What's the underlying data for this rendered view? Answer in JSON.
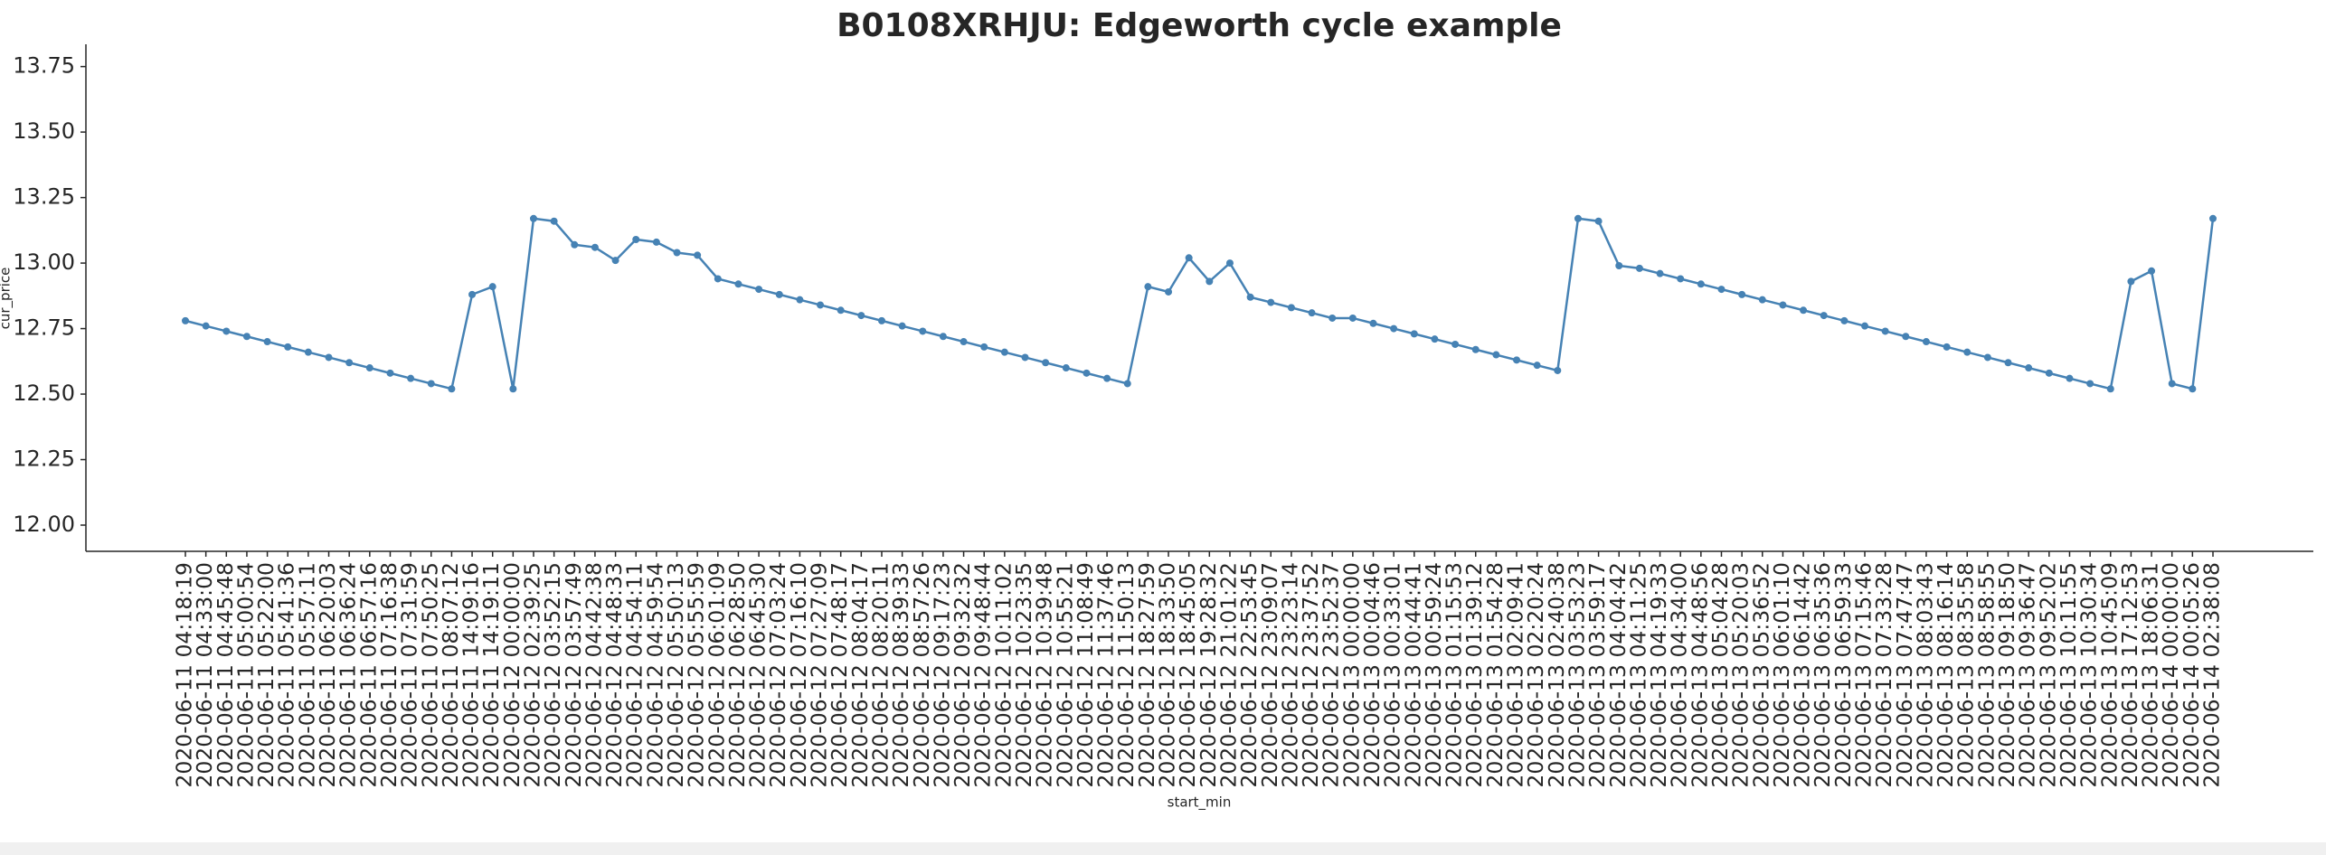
{
  "chart_data": {
    "type": "line",
    "title": "B0108XRHJU: Edgeworth cycle example",
    "x_label": "start_min",
    "y_label": "cur_price",
    "categories": [
      "2020-06-11 04:18:19",
      "2020-06-11 04:33:00",
      "2020-06-11 04:45:48",
      "2020-06-11 05:00:54",
      "2020-06-11 05:22:00",
      "2020-06-11 05:41:36",
      "2020-06-11 05:57:11",
      "2020-06-11 06:20:03",
      "2020-06-11 06:36:24",
      "2020-06-11 06:57:16",
      "2020-06-11 07:16:38",
      "2020-06-11 07:31:59",
      "2020-06-11 07:50:25",
      "2020-06-11 08:07:12",
      "2020-06-11 14:09:16",
      "2020-06-11 14:19:11",
      "2020-06-12 00:00:00",
      "2020-06-12 02:39:25",
      "2020-06-12 03:52:15",
      "2020-06-12 03:57:49",
      "2020-06-12 04:42:38",
      "2020-06-12 04:48:33",
      "2020-06-12 04:54:11",
      "2020-06-12 04:59:54",
      "2020-06-12 05:50:13",
      "2020-06-12 05:55:59",
      "2020-06-12 06:01:09",
      "2020-06-12 06:28:50",
      "2020-06-12 06:45:30",
      "2020-06-12 07:03:24",
      "2020-06-12 07:16:10",
      "2020-06-12 07:27:09",
      "2020-06-12 07:48:17",
      "2020-06-12 08:04:17",
      "2020-06-12 08:20:11",
      "2020-06-12 08:39:33",
      "2020-06-12 08:57:26",
      "2020-06-12 09:17:23",
      "2020-06-12 09:32:32",
      "2020-06-12 09:48:44",
      "2020-06-12 10:11:02",
      "2020-06-12 10:23:35",
      "2020-06-12 10:39:48",
      "2020-06-12 10:55:21",
      "2020-06-12 11:08:49",
      "2020-06-12 11:37:46",
      "2020-06-12 11:50:13",
      "2020-06-12 18:27:59",
      "2020-06-12 18:33:50",
      "2020-06-12 18:45:05",
      "2020-06-12 19:28:32",
      "2020-06-12 21:01:22",
      "2020-06-12 22:53:45",
      "2020-06-12 23:09:07",
      "2020-06-12 23:23:14",
      "2020-06-12 23:37:52",
      "2020-06-12 23:52:37",
      "2020-06-13 00:00:00",
      "2020-06-13 00:04:46",
      "2020-06-13 00:33:01",
      "2020-06-13 00:44:41",
      "2020-06-13 00:59:24",
      "2020-06-13 01:15:53",
      "2020-06-13 01:39:12",
      "2020-06-13 01:54:28",
      "2020-06-13 02:09:41",
      "2020-06-13 02:20:24",
      "2020-06-13 02:40:38",
      "2020-06-13 03:53:23",
      "2020-06-13 03:59:17",
      "2020-06-13 04:04:42",
      "2020-06-13 04:11:25",
      "2020-06-13 04:19:33",
      "2020-06-13 04:34:00",
      "2020-06-13 04:48:56",
      "2020-06-13 05:04:28",
      "2020-06-13 05:20:03",
      "2020-06-13 05:36:52",
      "2020-06-13 06:01:10",
      "2020-06-13 06:14:42",
      "2020-06-13 06:35:36",
      "2020-06-13 06:59:33",
      "2020-06-13 07:15:46",
      "2020-06-13 07:33:28",
      "2020-06-13 07:47:47",
      "2020-06-13 08:03:43",
      "2020-06-13 08:16:14",
      "2020-06-13 08:35:58",
      "2020-06-13 08:58:55",
      "2020-06-13 09:18:50",
      "2020-06-13 09:36:47",
      "2020-06-13 09:52:02",
      "2020-06-13 10:11:55",
      "2020-06-13 10:30:34",
      "2020-06-13 10:45:09",
      "2020-06-13 17:12:53",
      "2020-06-13 18:06:31",
      "2020-06-14 00:00:00",
      "2020-06-14 00:05:26",
      "2020-06-14 02:38:08"
    ],
    "values": [
      12.78,
      12.76,
      12.74,
      12.72,
      12.7,
      12.68,
      12.66,
      12.64,
      12.62,
      12.6,
      12.58,
      12.56,
      12.54,
      12.52,
      12.88,
      12.91,
      12.52,
      13.17,
      13.16,
      13.07,
      13.06,
      13.01,
      13.09,
      13.08,
      13.04,
      13.03,
      12.94,
      12.92,
      12.9,
      12.88,
      12.86,
      12.84,
      12.82,
      12.8,
      12.78,
      12.76,
      12.74,
      12.72,
      12.7,
      12.68,
      12.66,
      12.64,
      12.62,
      12.6,
      12.58,
      12.56,
      12.54,
      12.91,
      12.89,
      13.02,
      12.93,
      13.0,
      12.87,
      12.85,
      12.83,
      12.81,
      12.79,
      12.79,
      12.77,
      12.75,
      12.73,
      12.71,
      12.69,
      12.67,
      12.65,
      12.63,
      12.61,
      12.59,
      13.17,
      13.16,
      12.99,
      12.98,
      12.96,
      12.94,
      12.92,
      12.9,
      12.88,
      12.86,
      12.84,
      12.82,
      12.8,
      12.78,
      12.76,
      12.74,
      12.72,
      12.7,
      12.68,
      12.66,
      12.64,
      12.62,
      12.6,
      12.58,
      12.56,
      12.54,
      12.52,
      12.93,
      12.97,
      12.54,
      12.52,
      13.17
    ],
    "color": "#4682b4",
    "ylim": [
      11.9,
      13.835
    ],
    "yticks": [
      {
        "value": 12,
        "label": "12.00"
      },
      12.25,
      {
        "value": 12.5,
        "label": "12.50"
      },
      {
        "value": 12.75,
        "label": "12.75"
      },
      {
        "value": 13,
        "label": "13.00"
      },
      13.25,
      {
        "value": 13.5,
        "label": "13.50"
      },
      13.75
    ],
    "grid": false
  }
}
